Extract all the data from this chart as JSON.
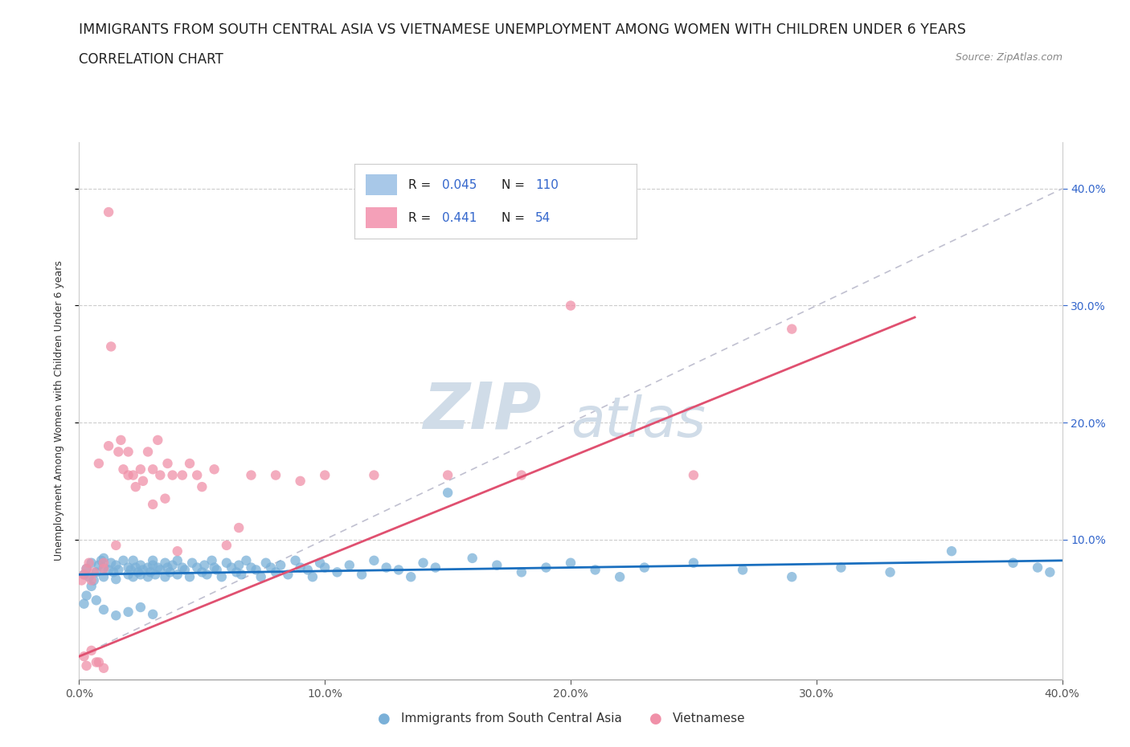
{
  "title_line1": "IMMIGRANTS FROM SOUTH CENTRAL ASIA VS VIETNAMESE UNEMPLOYMENT AMONG WOMEN WITH CHILDREN UNDER 6 YEARS",
  "title_line2": "CORRELATION CHART",
  "source_text": "Source: ZipAtlas.com",
  "ylabel": "Unemployment Among Women with Children Under 6 years",
  "xlim": [
    0.0,
    0.4
  ],
  "ylim": [
    -0.02,
    0.44
  ],
  "xtick_labels": [
    "0.0%",
    "10.0%",
    "20.0%",
    "30.0%",
    "40.0%"
  ],
  "xtick_vals": [
    0.0,
    0.1,
    0.2,
    0.3,
    0.4
  ],
  "ytick_labels": [
    "10.0%",
    "20.0%",
    "30.0%",
    "40.0%"
  ],
  "ytick_vals": [
    0.1,
    0.2,
    0.3,
    0.4
  ],
  "legend_entries": [
    {
      "label": "Immigrants from South Central Asia",
      "color": "#a8c8e8",
      "R": "0.045",
      "N": "110"
    },
    {
      "label": "Vietnamese",
      "color": "#f4a0b8",
      "R": "0.441",
      "N": "54"
    }
  ],
  "blue_scatter_x": [
    0.002,
    0.003,
    0.004,
    0.005,
    0.006,
    0.007,
    0.008,
    0.009,
    0.01,
    0.01,
    0.01,
    0.012,
    0.013,
    0.014,
    0.015,
    0.015,
    0.016,
    0.018,
    0.02,
    0.02,
    0.021,
    0.022,
    0.022,
    0.023,
    0.024,
    0.025,
    0.025,
    0.026,
    0.028,
    0.028,
    0.029,
    0.03,
    0.03,
    0.031,
    0.032,
    0.033,
    0.035,
    0.035,
    0.036,
    0.037,
    0.038,
    0.04,
    0.04,
    0.042,
    0.043,
    0.045,
    0.046,
    0.048,
    0.05,
    0.051,
    0.052,
    0.054,
    0.055,
    0.056,
    0.058,
    0.06,
    0.062,
    0.064,
    0.065,
    0.066,
    0.068,
    0.07,
    0.072,
    0.074,
    0.076,
    0.078,
    0.08,
    0.082,
    0.085,
    0.088,
    0.09,
    0.093,
    0.095,
    0.098,
    0.1,
    0.105,
    0.11,
    0.115,
    0.12,
    0.125,
    0.13,
    0.135,
    0.14,
    0.145,
    0.15,
    0.16,
    0.17,
    0.18,
    0.19,
    0.2,
    0.21,
    0.22,
    0.23,
    0.25,
    0.27,
    0.29,
    0.31,
    0.33,
    0.355,
    0.38,
    0.39,
    0.395,
    0.002,
    0.003,
    0.005,
    0.007,
    0.01,
    0.015,
    0.02,
    0.025,
    0.03
  ],
  "blue_scatter_y": [
    0.07,
    0.075,
    0.068,
    0.08,
    0.065,
    0.072,
    0.078,
    0.082,
    0.076,
    0.084,
    0.068,
    0.074,
    0.08,
    0.072,
    0.066,
    0.078,
    0.074,
    0.082,
    0.07,
    0.076,
    0.074,
    0.068,
    0.082,
    0.076,
    0.072,
    0.078,
    0.07,
    0.074,
    0.068,
    0.076,
    0.072,
    0.078,
    0.082,
    0.07,
    0.076,
    0.074,
    0.068,
    0.08,
    0.076,
    0.072,
    0.078,
    0.07,
    0.082,
    0.076,
    0.074,
    0.068,
    0.08,
    0.076,
    0.072,
    0.078,
    0.07,
    0.082,
    0.076,
    0.074,
    0.068,
    0.08,
    0.076,
    0.072,
    0.078,
    0.07,
    0.082,
    0.076,
    0.074,
    0.068,
    0.08,
    0.076,
    0.072,
    0.078,
    0.07,
    0.082,
    0.076,
    0.074,
    0.068,
    0.08,
    0.076,
    0.072,
    0.078,
    0.07,
    0.082,
    0.076,
    0.074,
    0.068,
    0.08,
    0.076,
    0.14,
    0.084,
    0.078,
    0.072,
    0.076,
    0.08,
    0.074,
    0.068,
    0.076,
    0.08,
    0.074,
    0.068,
    0.076,
    0.072,
    0.09,
    0.08,
    0.076,
    0.072,
    0.045,
    0.052,
    0.06,
    0.048,
    0.04,
    0.035,
    0.038,
    0.042,
    0.036
  ],
  "pink_scatter_x": [
    0.001,
    0.002,
    0.003,
    0.004,
    0.005,
    0.006,
    0.007,
    0.008,
    0.01,
    0.01,
    0.012,
    0.013,
    0.015,
    0.016,
    0.017,
    0.018,
    0.02,
    0.02,
    0.022,
    0.023,
    0.025,
    0.026,
    0.028,
    0.03,
    0.03,
    0.032,
    0.033,
    0.035,
    0.036,
    0.038,
    0.04,
    0.042,
    0.045,
    0.048,
    0.05,
    0.055,
    0.06,
    0.065,
    0.07,
    0.08,
    0.09,
    0.1,
    0.12,
    0.15,
    0.18,
    0.2,
    0.25,
    0.29,
    0.002,
    0.003,
    0.005,
    0.008,
    0.01,
    0.012
  ],
  "pink_scatter_y": [
    0.065,
    0.07,
    0.075,
    0.08,
    0.065,
    0.072,
    -0.005,
    0.165,
    0.075,
    0.08,
    0.18,
    0.265,
    0.095,
    0.175,
    0.185,
    0.16,
    0.155,
    0.175,
    0.155,
    0.145,
    0.16,
    0.15,
    0.175,
    0.13,
    0.16,
    0.185,
    0.155,
    0.135,
    0.165,
    0.155,
    0.09,
    0.155,
    0.165,
    0.155,
    0.145,
    0.16,
    0.095,
    0.11,
    0.155,
    0.155,
    0.15,
    0.155,
    0.155,
    0.155,
    0.155,
    0.3,
    0.155,
    0.28,
    0.0,
    -0.008,
    0.005,
    -0.005,
    -0.01,
    0.38
  ],
  "blue_line_x": [
    0.0,
    0.4
  ],
  "blue_line_y": [
    0.07,
    0.082
  ],
  "pink_line_x": [
    0.0,
    0.34
  ],
  "pink_line_y": [
    0.0,
    0.29
  ],
  "dashed_line_x": [
    0.0,
    0.4
  ],
  "dashed_line_y": [
    0.0,
    0.4
  ],
  "blue_line_color": "#1a6fbf",
  "pink_line_color": "#e05070",
  "dashed_line_color": "#c0c0d0",
  "blue_scatter_color": "#7ab0d8",
  "pink_scatter_color": "#f090a8",
  "watermark_zip": "ZIP",
  "watermark_atlas": "atlas",
  "watermark_color": "#d0dce8",
  "title_fontsize": 12.5,
  "subtitle_fontsize": 12,
  "axis_label_fontsize": 9,
  "tick_fontsize": 10,
  "background_color": "#ffffff",
  "figsize": [
    14.06,
    9.3
  ],
  "dpi": 100
}
